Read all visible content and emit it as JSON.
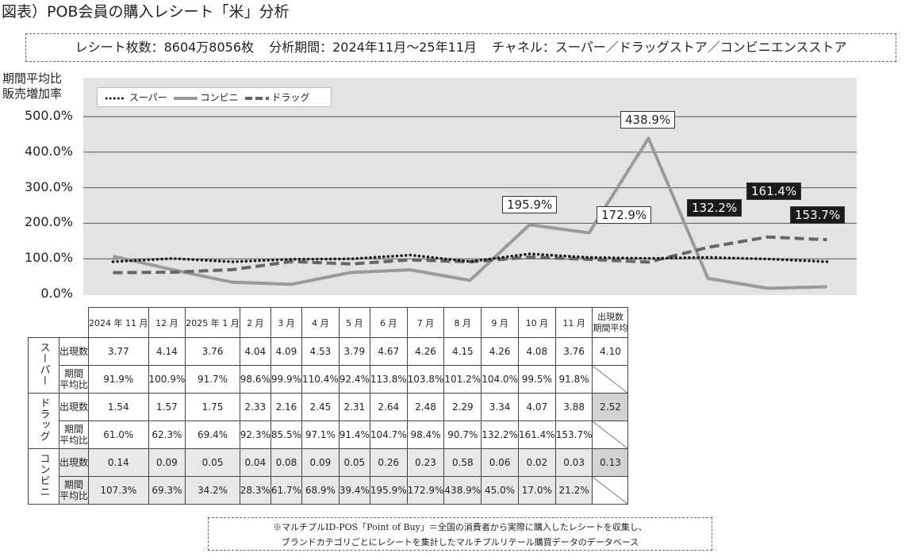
{
  "title": "図表）POB会員の購入レシート「米」分析",
  "info": {
    "receipts": "レシート枚数：8604万8056枚",
    "period": "分析期間：2024年11月〜25年11月",
    "channels": "チャネル：スーパー／ドラッグストア／コンビニエンスストア"
  },
  "chart_data": {
    "type": "line",
    "ylabel": [
      "期間平均比",
      "販売増加率"
    ],
    "ylim": [
      0,
      500
    ],
    "yticks": [
      "0.0%",
      "100.0%",
      "200.0%",
      "300.0%",
      "400.0%",
      "500.0%"
    ],
    "grid": true,
    "legend_position": "top-left",
    "categories": [
      "2024年11月",
      "12月",
      "2025年1月",
      "2月",
      "3月",
      "4月",
      "5月",
      "6月",
      "7月",
      "8月",
      "9月",
      "10月",
      "11月"
    ],
    "series": [
      {
        "name": "スーパー",
        "style": "dotted",
        "color": "#1a1a1a",
        "values": [
          91.9,
          100.9,
          91.7,
          98.6,
          99.9,
          110.4,
          92.4,
          113.8,
          103.8,
          101.2,
          104.0,
          99.5,
          91.8
        ]
      },
      {
        "name": "コンビニ",
        "style": "solid",
        "color": "#9a9a9a",
        "values": [
          107.3,
          69.3,
          34.2,
          28.3,
          61.7,
          68.9,
          39.4,
          195.9,
          172.9,
          438.9,
          45.0,
          17.0,
          21.2
        ]
      },
      {
        "name": "ドラッグ",
        "style": "dashed",
        "color": "#666666",
        "values": [
          61.0,
          62.3,
          69.4,
          92.3,
          85.5,
          97.1,
          91.4,
          104.7,
          98.4,
          90.7,
          132.2,
          161.4,
          153.7
        ]
      }
    ],
    "annotations": [
      {
        "text": "195.9%",
        "style": "white"
      },
      {
        "text": "172.9%",
        "style": "white"
      },
      {
        "text": "438.9%",
        "style": "white"
      },
      {
        "text": "132.2%",
        "style": "black"
      },
      {
        "text": "161.4%",
        "style": "black"
      },
      {
        "text": "153.7%",
        "style": "black"
      }
    ]
  },
  "table": {
    "headers": [
      "2024 年 11 月",
      "12 月",
      "2025 年 1 月",
      "2 月",
      "3 月",
      "4 月",
      "5 月",
      "6 月",
      "7 月",
      "8 月",
      "9 月",
      "10 月",
      "11 月"
    ],
    "avg_header": [
      "出現数",
      "期間平均"
    ],
    "row_label_count": "出現数",
    "row_label_ratio": [
      "期間",
      "平均比"
    ],
    "groups": [
      {
        "name": "スーパー",
        "count": [
          "3.77",
          "4.14",
          "3.76",
          "4.04",
          "4.09",
          "4.53",
          "3.79",
          "4.67",
          "4.26",
          "4.15",
          "4.26",
          "4.08",
          "3.76"
        ],
        "ratio": [
          "91.9%",
          "100.9%",
          "91.7%",
          "98.6%",
          "99.9%",
          "110.4%",
          "92.4%",
          "113.8%",
          "103.8%",
          "101.2%",
          "104.0%",
          "99.5%",
          "91.8%"
        ],
        "avg": "4.10"
      },
      {
        "name": "ドラッグ",
        "count": [
          "1.54",
          "1.57",
          "1.75",
          "2.33",
          "2.16",
          "2.45",
          "2.31",
          "2.64",
          "2.48",
          "2.29",
          "3.34",
          "4.07",
          "3.88"
        ],
        "ratio": [
          "61.0%",
          "62.3%",
          "69.4%",
          "92.3%",
          "85.5%",
          "97.1%",
          "91.4%",
          "104.7%",
          "98.4%",
          "90.7%",
          "132.2%",
          "161.4%",
          "153.7%"
        ],
        "avg": "2.52"
      },
      {
        "name": "コンビニ",
        "count": [
          "0.14",
          "0.09",
          "0.05",
          "0.04",
          "0.08",
          "0.09",
          "0.05",
          "0.26",
          "0.23",
          "0.58",
          "0.06",
          "0.02",
          "0.03"
        ],
        "ratio": [
          "107.3%",
          "69.3%",
          "34.2%",
          "28.3%",
          "61.7%",
          "68.9%",
          "39.4%",
          "195.9%",
          "172.9%",
          "438.9%",
          "45.0%",
          "17.0%",
          "21.2%"
        ],
        "avg": "0.13"
      }
    ]
  },
  "footnote": [
    "※マルチプルID-POS「Point of Buy」＝全国の消費者から実際に購入したレシートを収集し、",
    "ブランドカテゴリごとにレシートを集計したマルチプルリテール購買データのデータベース"
  ]
}
